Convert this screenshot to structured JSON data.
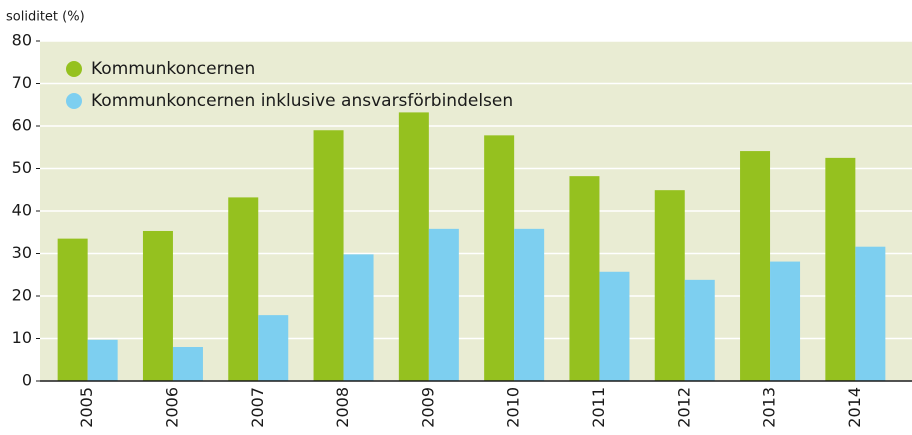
{
  "chart_data": {
    "type": "bar",
    "y_label": "soliditet (%)",
    "categories": [
      "2005",
      "2006",
      "2007",
      "2008",
      "2009",
      "2010",
      "2011",
      "2012",
      "2013",
      "2014"
    ],
    "series": [
      {
        "name": "Kommunkoncernen",
        "color": "#95c11f",
        "values": [
          33.5,
          35.3,
          43.2,
          59,
          63.2,
          57.8,
          48.2,
          44.9,
          54.1,
          52.5
        ]
      },
      {
        "name": "Kommunkoncernen inklusive ansvarsförbindelsen",
        "color": "#7dcff0",
        "values": [
          9.7,
          8,
          15.5,
          29.8,
          35.8,
          35.8,
          25.7,
          23.8,
          28.1,
          31.6
        ]
      }
    ],
    "ylim": [
      0,
      80
    ],
    "yticks": [
      0,
      10,
      20,
      30,
      40,
      50,
      60,
      70,
      80
    ],
    "grid": true,
    "legend": "upper left"
  }
}
